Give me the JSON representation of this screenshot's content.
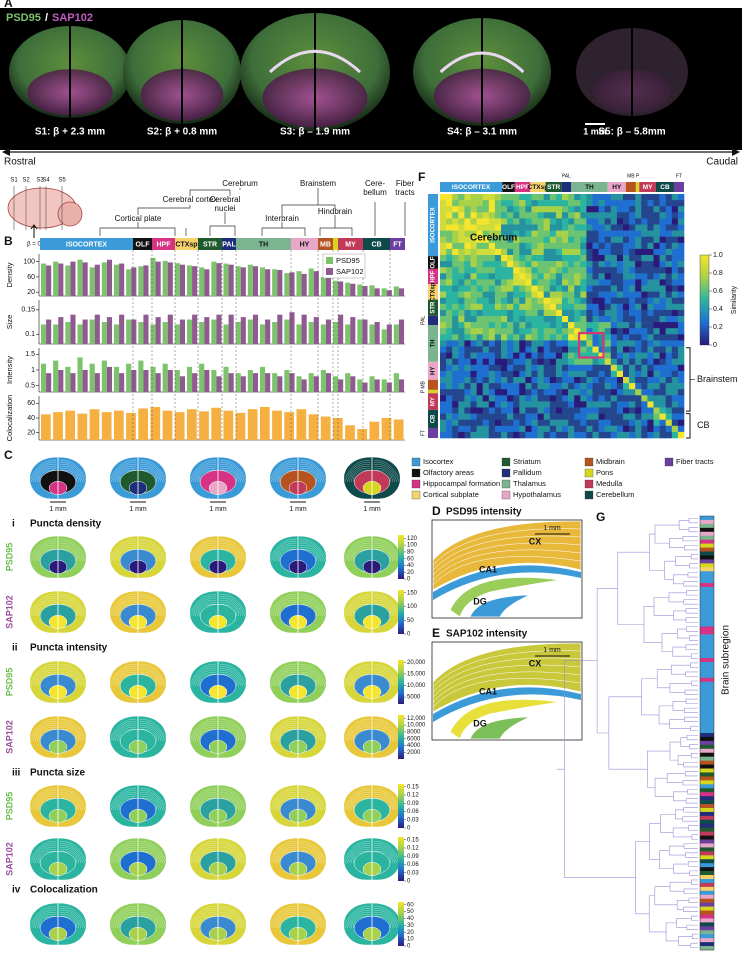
{
  "panel_a": {
    "letter": "A",
    "psd95": "PSD95",
    "slash": "/",
    "sap102": "SAP102",
    "sections": [
      "S1: β + 2.3 mm",
      "S2: β + 0.8 mm",
      "S3: β – 1.9 mm",
      "S4: β – 3.1 mm",
      "S5: β – 5.8mm"
    ],
    "scale": "1 mm",
    "rostral": "Rostral",
    "caudal": "Caudal"
  },
  "sketch": {
    "sections": [
      "S1",
      "S2",
      "S3",
      "S4",
      "S5"
    ],
    "origin": "β = 0"
  },
  "panel_b": {
    "letter": "B",
    "tree": [
      {
        "lines": [
          "Cerebrum"
        ]
      },
      {
        "lines": [
          "Cerebral cortex"
        ]
      },
      {
        "lines": [
          "Cerebral",
          "nuclei"
        ]
      },
      {
        "lines": [
          "Cortical plate"
        ]
      },
      {
        "lines": [
          "Brainstem"
        ]
      },
      {
        "lines": [
          "Interbrain"
        ]
      },
      {
        "lines": [
          "Hindbrain"
        ]
      },
      {
        "lines": [
          "Cere-",
          "bellum"
        ]
      },
      {
        "lines": [
          "Fiber",
          "tracts"
        ]
      }
    ],
    "regions": [
      {
        "label": "ISOCORTEX",
        "color": "#3b9bd8"
      },
      {
        "label": "OLF",
        "color": "#111111"
      },
      {
        "label": "HPF",
        "color": "#d63384"
      },
      {
        "label": "CTXsp",
        "color": "#f6d26b"
      },
      {
        "label": "STR",
        "color": "#1f5a2e"
      },
      {
        "label": "PAL",
        "color": "#1f2e7a"
      },
      {
        "label": "TH",
        "color": "#7bb58f"
      },
      {
        "label": "HY",
        "color": "#e8a6c8"
      },
      {
        "label": "MB",
        "color": "#b5541f"
      },
      {
        "label": "P",
        "color": "#d6d61f"
      },
      {
        "label": "MY",
        "color": "#c23a5a"
      },
      {
        "label": "CB",
        "color": "#0f4a4a"
      },
      {
        "label": "FT",
        "color": "#6b3fa0"
      }
    ],
    "charts": [
      {
        "type": "bar",
        "y_label": "Density",
        "ylim": [
          10,
          120
        ],
        "yticks": [
          20,
          60,
          100
        ],
        "series": [
          {
            "name": "PSD95",
            "color": "#7cc36c",
            "values": [
              95,
              100,
              90,
              105,
              85,
              98,
              92,
              80,
              88,
              110,
              102,
              96,
              90,
              85,
              100,
              95,
              88,
              92,
              85,
              80,
              70,
              75,
              82,
              60,
              50,
              45,
              40,
              38,
              30,
              35
            ]
          },
          {
            "name": "SAP102",
            "color": "#8e5a8f",
            "values": [
              90,
              95,
              100,
              98,
              92,
              105,
              95,
              85,
              90,
              100,
              98,
              92,
              88,
              80,
              96,
              92,
              85,
              88,
              80,
              78,
              72,
              68,
              75,
              65,
              48,
              42,
              36,
              30,
              25,
              30
            ]
          }
        ]
      },
      {
        "type": "bar",
        "y_label": "Size",
        "ylim": [
          0.08,
          0.17
        ],
        "yticks": [
          0.1,
          0.15
        ],
        "series": [
          {
            "color": "#7cc36c",
            "values": [
              0.12,
              0.12,
              0.125,
              0.12,
              0.13,
              0.125,
              0.12,
              0.13,
              0.125,
              0.12,
              0.125,
              0.12,
              0.13,
              0.125,
              0.13,
              0.12,
              0.125,
              0.13,
              0.12,
              0.125,
              0.13,
              0.12,
              0.125,
              0.12,
              0.125,
              0.12,
              0.13,
              0.12,
              0.11,
              0.12
            ]
          },
          {
            "color": "#8e5a8f",
            "values": [
              0.13,
              0.135,
              0.14,
              0.13,
              0.14,
              0.135,
              0.14,
              0.13,
              0.14,
              0.135,
              0.14,
              0.13,
              0.14,
              0.135,
              0.14,
              0.14,
              0.135,
              0.14,
              0.13,
              0.14,
              0.145,
              0.14,
              0.135,
              0.13,
              0.14,
              0.135,
              0.13,
              0.125,
              0.12,
              0.13
            ]
          }
        ]
      },
      {
        "type": "bar",
        "y_label": "Intensity",
        "ylim": [
          0.3,
          1.7
        ],
        "yticks": [
          0.5,
          1,
          1.5
        ],
        "series": [
          {
            "color": "#7cc36c",
            "values": [
              1.2,
              1.3,
              1.1,
              1.4,
              1.2,
              1.3,
              1.1,
              1.2,
              1.3,
              1.1,
              1.2,
              1.0,
              1.1,
              1.2,
              1.0,
              1.1,
              0.9,
              1.0,
              1.1,
              0.9,
              1.0,
              0.8,
              0.9,
              1.0,
              0.8,
              0.9,
              0.7,
              0.8,
              0.7,
              0.9
            ]
          },
          {
            "color": "#8e5a8f",
            "values": [
              0.9,
              1.0,
              0.9,
              1.0,
              0.9,
              1.1,
              0.9,
              1.0,
              1.0,
              0.9,
              1.0,
              0.8,
              0.9,
              1.0,
              0.8,
              0.9,
              0.8,
              0.9,
              0.9,
              0.8,
              0.9,
              0.7,
              0.8,
              0.9,
              0.7,
              0.8,
              0.6,
              0.7,
              0.6,
              0.7
            ]
          }
        ]
      },
      {
        "type": "bar",
        "y_label": "Colocalization",
        "ylim": [
          10,
          70
        ],
        "yticks": [
          20,
          40,
          60
        ],
        "series": [
          {
            "color": "#f5b041",
            "values": [
              45,
              48,
              50,
              46,
              52,
              48,
              50,
              47,
              53,
              55,
              50,
              48,
              52,
              49,
              54,
              50,
              47,
              52,
              55,
              50,
              48,
              52,
              45,
              42,
              40,
              30,
              25,
              35,
              40,
              38
            ]
          }
        ]
      }
    ]
  },
  "panel_c": {
    "letter": "C",
    "scale": "1 mm",
    "legend": [
      {
        "label": "Isocortex",
        "color": "#3b9bd8"
      },
      {
        "label": "Olfactory areas",
        "color": "#111111"
      },
      {
        "label": "Hippocampal formation",
        "color": "#d63384"
      },
      {
        "label": "Cortical subplate",
        "color": "#f6d26b"
      },
      {
        "label": "Striatum",
        "color": "#1f5a2e"
      },
      {
        "label": "Pallidum",
        "color": "#1f2e7a"
      },
      {
        "label": "Thalamus",
        "color": "#7bb58f"
      },
      {
        "label": "Hypothalamus",
        "color": "#e8a6c8"
      },
      {
        "label": "Midbrain",
        "color": "#b5541f"
      },
      {
        "label": "Pons",
        "color": "#d6d61f"
      },
      {
        "label": "Medulla",
        "color": "#c23a5a"
      },
      {
        "label": "Cerebellum",
        "color": "#0f4a4a"
      },
      {
        "label": "Fiber tracts",
        "color": "#6b3fa0"
      }
    ],
    "subpanels": [
      {
        "numeral": "i",
        "title": "Puncta density",
        "rows": [
          {
            "label": "PSD95",
            "color": "#6abf4b",
            "lim": [
              0,
              130
            ],
            "ticks": [
              0,
              20,
              40,
              60,
              80,
              100,
              120
            ]
          },
          {
            "label": "SAP102",
            "color": "#9b4f9b",
            "lim": [
              0,
              160
            ],
            "ticks": [
              0,
              50,
              100,
              150
            ]
          }
        ]
      },
      {
        "numeral": "ii",
        "title": "Puncta intensity",
        "rows": [
          {
            "label": "PSD95",
            "color": "#6abf4b",
            "lim": [
              2000,
              21000
            ],
            "ticks": [
              5000,
              {
                "value": 10000,
                "label": "10,000"
              },
              {
                "value": 15000,
                "label": "15,000"
              },
              {
                "value": 20000,
                "label": "20,000"
              }
            ]
          },
          {
            "label": "SAP102",
            "color": "#9b4f9b",
            "lim": [
              0,
              13000
            ],
            "ticks": [
              2000,
              4000,
              6000,
              8000,
              {
                "value": 10000,
                "label": "10,000"
              },
              {
                "value": 12000,
                "label": "12,000"
              }
            ]
          }
        ]
      },
      {
        "numeral": "iii",
        "title": "Puncta size",
        "rows": [
          {
            "label": "PSD95",
            "color": "#6abf4b",
            "lim": [
              0,
              0.16
            ],
            "ticks": [
              0,
              0.03,
              0.06,
              0.09,
              0.12,
              0.15
            ]
          },
          {
            "label": "SAP102",
            "color": "#9b4f9b",
            "lim": [
              0,
              0.16
            ],
            "ticks": [
              0,
              0.03,
              0.06,
              0.09,
              0.12,
              0.15
            ]
          }
        ]
      },
      {
        "numeral": "iv",
        "title": "Colocalization",
        "rows": [
          {
            "lim": [
              0,
              64
            ],
            "ticks": [
              0,
              10,
              20,
              30,
              40,
              50,
              60
            ]
          }
        ]
      }
    ]
  },
  "panel_d": {
    "letter": "D",
    "title": "PSD95 intensity",
    "labels": [
      "CX",
      "CA1",
      "DG"
    ],
    "scale": "1 mm"
  },
  "panel_e": {
    "letter": "E",
    "title": "SAP102 intensity",
    "labels": [
      "CX",
      "CA1",
      "DG"
    ],
    "scale": "1 mm"
  },
  "panel_f": {
    "letter": "F",
    "cerebrum": "Cerebrum",
    "brainstem": "Brainstem",
    "cb": "CB",
    "colorbar": {
      "label": "Similarity",
      "lim": [
        0,
        1
      ],
      "ticks": [
        0,
        0.2,
        0.4,
        0.6,
        0.8,
        {
          "value": 1,
          "label": "1.0"
        }
      ]
    }
  },
  "panel_g": {
    "letter": "G",
    "label": "Brain subregion"
  }
}
